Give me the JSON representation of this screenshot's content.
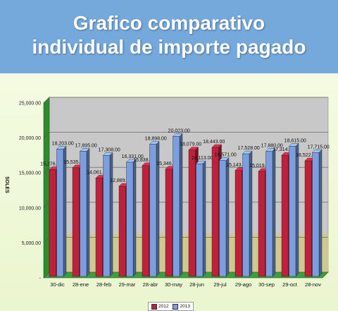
{
  "title": {
    "line1": "Grafico comparativo",
    "line2": "individual de importe pagado"
  },
  "colors": {
    "banner": "#75a9dc",
    "series_2012": "#c0203a",
    "series_2013": "#7a9ee0",
    "plot_back": "#c8c8c8",
    "plot_lower": "#cfc98a",
    "floor": "#2e8b2e"
  },
  "chart_data": {
    "type": "bar",
    "categories": [
      "30-dic",
      "28-ene",
      "28-feb",
      "29-mar",
      "28-abr",
      "30-may",
      "28-jun",
      "29-jul",
      "29-ago",
      "30-sep",
      "29-oct",
      "28-nov"
    ],
    "series": [
      {
        "name": "2012",
        "values": [
          15276,
          15535,
          14061,
          12889,
          15838,
          15346,
          18079,
          18443,
          15143,
          15019,
          17314,
          16522
        ],
        "labels": [
          "15,276.00",
          "15,535.00",
          "14,061.00",
          "12,889.00",
          "15,838.00",
          "15,346.00",
          "18,079.00",
          "18,443.00",
          "15,143.00",
          "15,019.00",
          "17,314.00",
          "16,522.00"
        ]
      },
      {
        "name": "2013",
        "values": [
          18203,
          17895,
          17308,
          16331,
          18898,
          20023,
          16113,
          16571,
          17528,
          17880,
          18615,
          17715
        ],
        "labels": [
          "18,203.00",
          "17,895.00",
          "17,308.00",
          "16,331.00",
          "18,898.00",
          "20,023.00",
          "16,113.00",
          "16,571.00",
          "17,528.00",
          "17,880.00",
          "18,615.00",
          "17,715.00"
        ]
      }
    ],
    "ylabel": "SOLES",
    "ylim": [
      0,
      25000
    ],
    "yticks": [
      {
        "value": 0,
        "label": "-"
      },
      {
        "value": 5000,
        "label": "5,000.00"
      },
      {
        "value": 10000,
        "label": "10,000.00"
      },
      {
        "value": 15000,
        "label": "15,000.00"
      },
      {
        "value": 20000,
        "label": "20,000.00"
      },
      {
        "value": 25000,
        "label": "25,000.00"
      }
    ],
    "grid": true,
    "legend_position": "bottom"
  }
}
